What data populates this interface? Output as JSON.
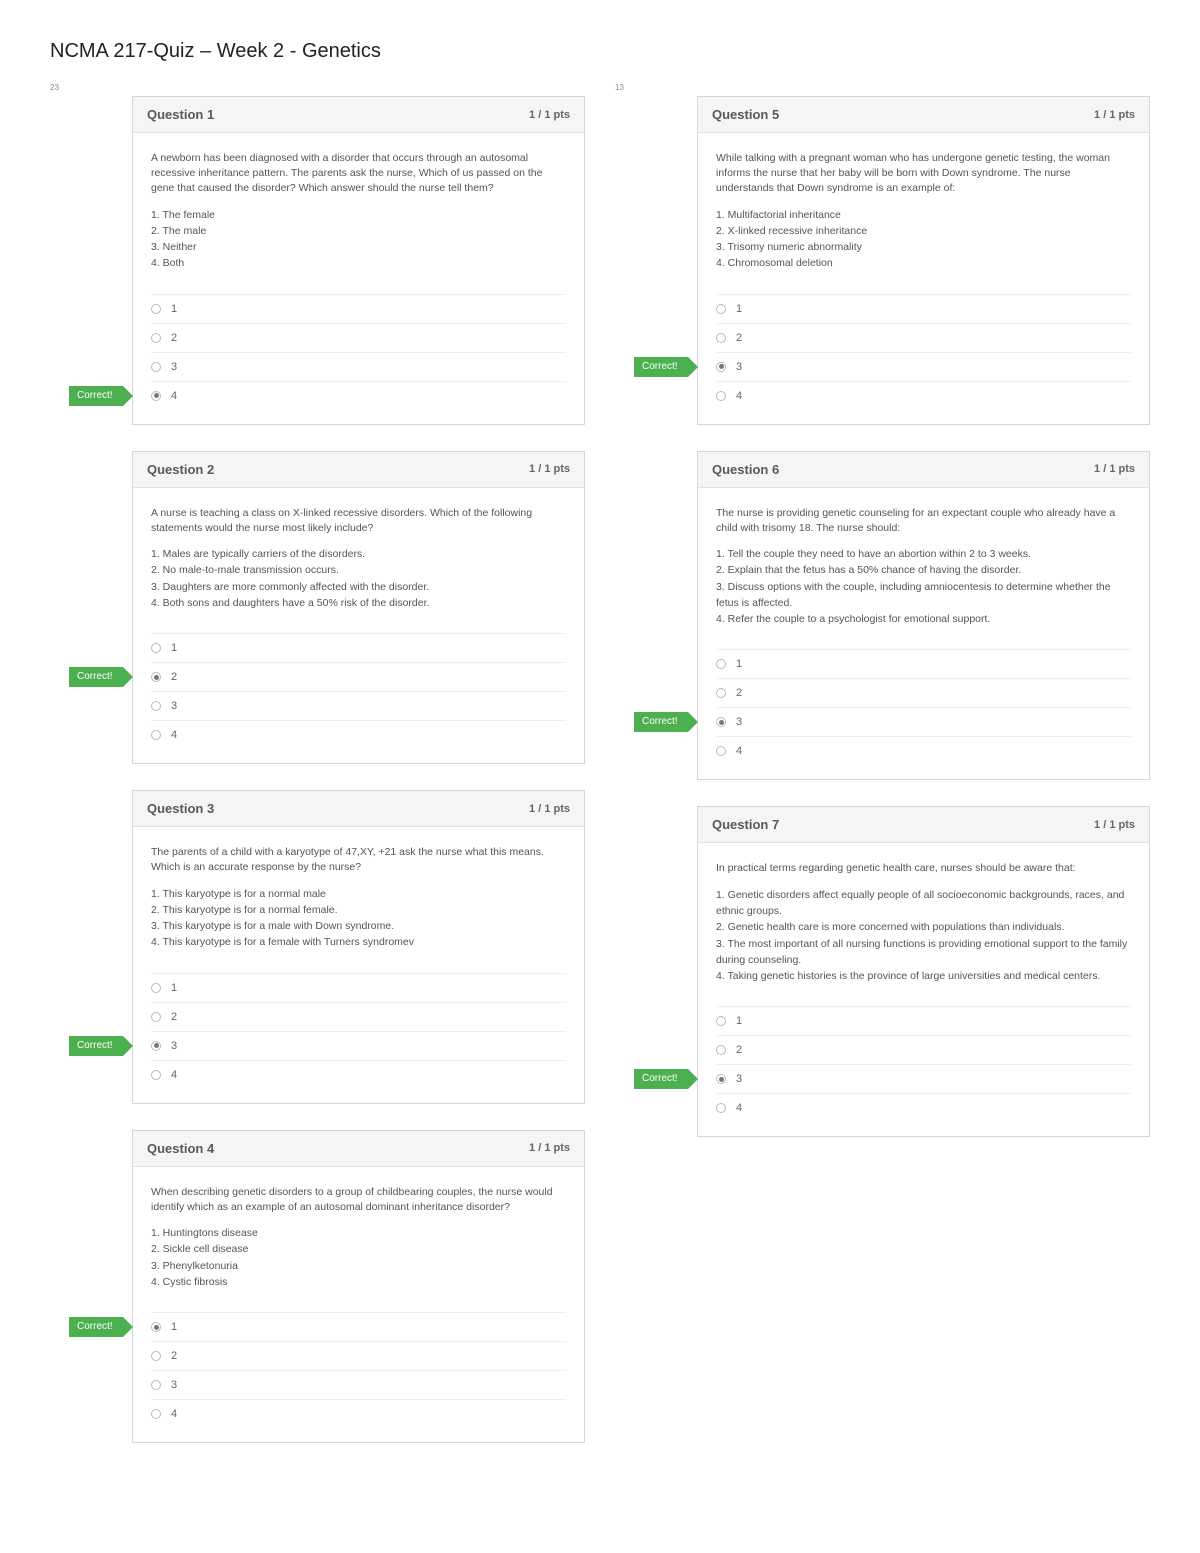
{
  "page_title": "NCMA 217-Quiz – Week 2 - Genetics",
  "correct_label": "Correct!",
  "left_pagenum": "23",
  "right_pagenum": "13",
  "styling": {
    "card_border": "#d6d6d6",
    "header_bg": "#f5f5f5",
    "correct_bg": "#4caf50",
    "text_color": "#555555",
    "title_fontsize": 20,
    "stem_fontsize": 10.5
  },
  "questions_left": [
    {
      "title": "Question 1",
      "pts": "1 / 1 pts",
      "stem": "A newborn has been diagnosed with a disorder that occurs through an autosomal recessive inheritance pattern. The parents ask the nurse, Which of us passed on the gene that caused the disorder? Which answer should the nurse tell them?",
      "opts": [
        "1. The female",
        "2. The male",
        "3. Neither",
        "4. Both"
      ],
      "answers": [
        "1",
        "2",
        "3",
        "4"
      ],
      "correct_index": 3
    },
    {
      "title": "Question 2",
      "pts": "1 / 1 pts",
      "stem": "A nurse is teaching a class on X-linked recessive disorders. Which of the following statements would the nurse most likely include?",
      "opts": [
        "1. Males are typically carriers of the disorders.",
        "2. No male-to-male transmission occurs.",
        "3. Daughters are more commonly affected with the disorder.",
        "4. Both sons and daughters have a 50% risk of the disorder."
      ],
      "answers": [
        "1",
        "2",
        "3",
        "4"
      ],
      "correct_index": 1
    },
    {
      "title": "Question 3",
      "pts": "1 / 1 pts",
      "stem": "The parents of a child with a karyotype of 47,XY, +21 ask the nurse what this means. Which is an accurate response by the nurse?",
      "opts": [
        "1. This karyotype is for a normal male",
        "2. This karyotype is for a normal female.",
        "3. This karyotype is for a male with Down syndrome.",
        "4. This karyotype is for a female with Turners syndromev"
      ],
      "answers": [
        "1",
        "2",
        "3",
        "4"
      ],
      "correct_index": 2
    },
    {
      "title": "Question 4",
      "pts": "1 / 1 pts",
      "stem": "When describing genetic disorders to a group of childbearing couples, the nurse would identify which as an example of an autosomal dominant inheritance disorder?",
      "opts": [
        "1. Huntingtons disease",
        "2. Sickle cell disease",
        "3. Phenylketonuria",
        "4. Cystic fibrosis"
      ],
      "answers": [
        "1",
        "2",
        "3",
        "4"
      ],
      "correct_index": 0
    }
  ],
  "questions_right": [
    {
      "title": "Question 5",
      "pts": "1 / 1 pts",
      "stem": "While talking with a pregnant woman who has undergone genetic testing, the woman informs the nurse that her baby will be born with Down syndrome. The nurse understands that Down syndrome is an example of:",
      "opts": [
        "1. Multifactorial inheritance",
        "2. X-linked recessive inheritance",
        "3. Trisomy numeric abnormality",
        "4. Chromosomal deletion"
      ],
      "answers": [
        "1",
        "2",
        "3",
        "4"
      ],
      "correct_index": 2
    },
    {
      "title": "Question 6",
      "pts": "1 / 1 pts",
      "stem": "The nurse is providing genetic counseling for an expectant couple who already have a child with trisomy 18. The nurse should:",
      "opts": [
        "1. Tell the couple they need to have an abortion within 2 to 3 weeks.",
        "2. Explain that the fetus has a 50% chance of having the disorder.",
        "3. Discuss options with the couple, including amniocentesis to determine whether the fetus is affected.",
        "4. Refer the couple to a psychologist for emotional support."
      ],
      "answers": [
        "1",
        "2",
        "3",
        "4"
      ],
      "correct_index": 2
    },
    {
      "title": "Question 7",
      "pts": "1 / 1 pts",
      "stem": "In practical terms regarding genetic health care, nurses should be aware that:",
      "opts": [
        "1. Genetic disorders affect equally people of all socioeconomic backgrounds, races, and ethnic groups.",
        "2.  Genetic health care is more concerned with populations than individuals.",
        "3.  The most important of all nursing functions is providing emotional support to the family during counseling.",
        "4. Taking genetic histories is the province of large universities and medical centers."
      ],
      "answers": [
        "1",
        "2",
        "3",
        "4"
      ],
      "correct_index": 2
    }
  ]
}
